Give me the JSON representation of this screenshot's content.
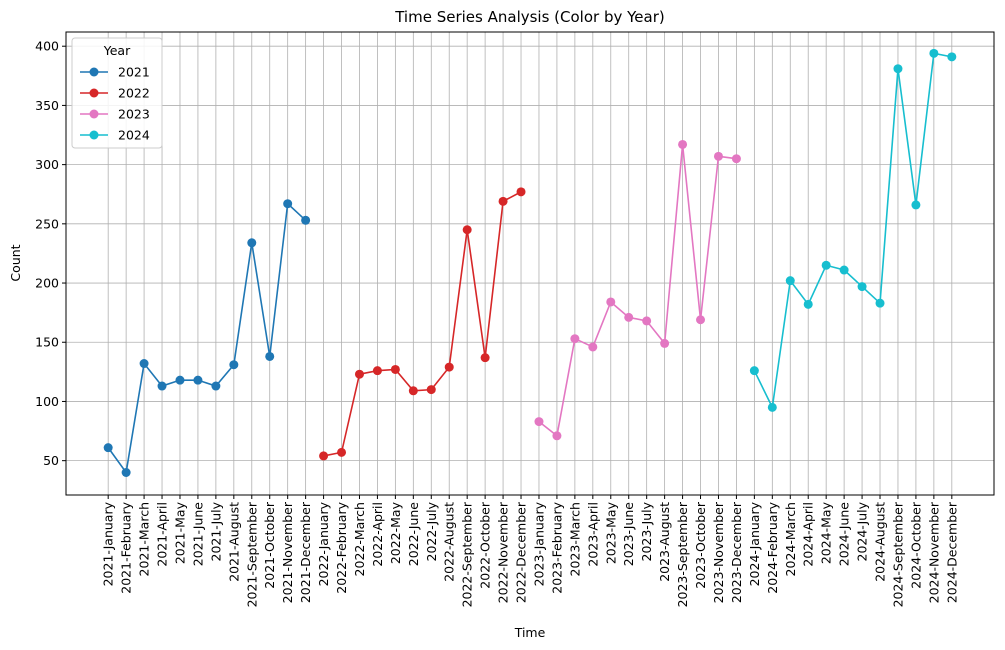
{
  "chart_data": {
    "type": "line",
    "title": "Time Series Analysis (Color by Year)",
    "x_label": "Time",
    "y_label": "Count",
    "legend_title": "Year",
    "legend_position": "upper left",
    "grid": true,
    "categories": [
      "2021-January",
      "2021-February",
      "2021-March",
      "2021-April",
      "2021-May",
      "2021-June",
      "2021-July",
      "2021-August",
      "2021-September",
      "2021-October",
      "2021-November",
      "2021-December",
      "2022-January",
      "2022-February",
      "2022-March",
      "2022-April",
      "2022-May",
      "2022-June",
      "2022-July",
      "2022-August",
      "2022-September",
      "2022-October",
      "2022-November",
      "2022-December",
      "2023-January",
      "2023-February",
      "2023-March",
      "2023-April",
      "2023-May",
      "2023-June",
      "2023-July",
      "2023-August",
      "2023-September",
      "2023-October",
      "2023-November",
      "2023-December",
      "2024-January",
      "2024-February",
      "2024-March",
      "2024-April",
      "2024-May",
      "2024-June",
      "2024-July",
      "2024-August",
      "2024-September",
      "2024-October",
      "2024-November",
      "2024-December"
    ],
    "series": [
      {
        "name": "2021",
        "color": "#1f77b4",
        "values": [
          61,
          40,
          132,
          113,
          118,
          118,
          113,
          131,
          234,
          138,
          267,
          253,
          null,
          null,
          null,
          null,
          null,
          null,
          null,
          null,
          null,
          null,
          null,
          null,
          null,
          null,
          null,
          null,
          null,
          null,
          null,
          null,
          null,
          null,
          null,
          null,
          null,
          null,
          null,
          null,
          null,
          null,
          null,
          null,
          null,
          null,
          null,
          null
        ]
      },
      {
        "name": "2022",
        "color": "#d62728",
        "values": [
          null,
          null,
          null,
          null,
          null,
          null,
          null,
          null,
          null,
          null,
          null,
          null,
          54,
          57,
          123,
          126,
          127,
          109,
          110,
          129,
          245,
          137,
          269,
          277,
          null,
          null,
          null,
          null,
          null,
          null,
          null,
          null,
          null,
          null,
          null,
          null,
          null,
          null,
          null,
          null,
          null,
          null,
          null,
          null,
          null,
          null,
          null,
          null
        ]
      },
      {
        "name": "2023",
        "color": "#e377c2",
        "values": [
          null,
          null,
          null,
          null,
          null,
          null,
          null,
          null,
          null,
          null,
          null,
          null,
          null,
          null,
          null,
          null,
          null,
          null,
          null,
          null,
          null,
          null,
          null,
          null,
          83,
          71,
          153,
          146,
          184,
          171,
          168,
          149,
          317,
          169,
          307,
          305,
          null,
          null,
          null,
          null,
          null,
          null,
          null,
          null,
          null,
          null,
          null,
          null
        ]
      },
      {
        "name": "2024",
        "color": "#17becf",
        "values": [
          null,
          null,
          null,
          null,
          null,
          null,
          null,
          null,
          null,
          null,
          null,
          null,
          null,
          null,
          null,
          null,
          null,
          null,
          null,
          null,
          null,
          null,
          null,
          null,
          null,
          null,
          null,
          null,
          null,
          null,
          null,
          null,
          null,
          null,
          null,
          null,
          126,
          95,
          202,
          182,
          215,
          211,
          197,
          183,
          381,
          266,
          394,
          391
        ]
      }
    ],
    "ylim": [
      21,
      412
    ],
    "yticks": [
      50,
      100,
      150,
      200,
      250,
      300,
      350,
      400
    ]
  }
}
